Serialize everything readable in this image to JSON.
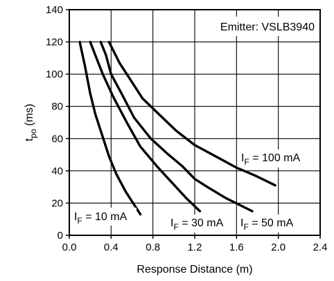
{
  "chart_data": {
    "type": "line",
    "annotation": "Emitter: VSLB3940",
    "xlabel": "Response Distance (m)",
    "ylabel_main": "t",
    "ylabel_sub": "po",
    "ylabel_unit": " (ms)",
    "xlim": [
      0,
      2.4
    ],
    "ylim": [
      0,
      140
    ],
    "xticks": [
      0,
      0.4,
      0.8,
      1.2,
      1.6,
      2.0,
      2.4
    ],
    "xtick_labels": [
      "0.0",
      "0.4",
      "0.8",
      "1.2",
      "1.6",
      "2.0",
      "2.4"
    ],
    "yticks": [
      0,
      20,
      40,
      60,
      80,
      100,
      120,
      140
    ],
    "ytick_labels": [
      "0",
      "20",
      "40",
      "60",
      "80",
      "100",
      "120",
      "140"
    ],
    "grid": true,
    "series": [
      {
        "label_main": "I",
        "label_sub": "F",
        "label_value": " = 10 mA",
        "x": [
          0.1,
          0.15,
          0.2,
          0.25,
          0.31,
          0.38,
          0.45,
          0.54,
          0.68
        ],
        "y": [
          120,
          105,
          88,
          75,
          63,
          49,
          38,
          27,
          13
        ]
      },
      {
        "label_main": "I",
        "label_sub": "F",
        "label_value": " = 30 mA",
        "x": [
          0.2,
          0.26,
          0.32,
          0.42,
          0.55,
          0.68,
          0.85,
          1.02,
          1.12,
          1.25
        ],
        "y": [
          120,
          110,
          100,
          86,
          70,
          55,
          42,
          30,
          23,
          15
        ]
      },
      {
        "label_main": "I",
        "label_sub": "F",
        "label_value": " = 50 mA",
        "x": [
          0.3,
          0.35,
          0.4,
          0.5,
          0.62,
          0.78,
          0.95,
          1.08,
          1.2,
          1.32,
          1.5,
          1.75
        ],
        "y": [
          120,
          112,
          100,
          88,
          73,
          60,
          50,
          43,
          35,
          30,
          23,
          15
        ]
      },
      {
        "label_main": "I",
        "label_sub": "F",
        "label_value": " = 100 mA",
        "x": [
          0.38,
          0.48,
          0.58,
          0.7,
          0.86,
          1.02,
          1.2,
          1.4,
          1.6,
          1.78,
          1.97
        ],
        "y": [
          120,
          107,
          97,
          85,
          75,
          65,
          56,
          49,
          42,
          37,
          31
        ]
      }
    ]
  }
}
